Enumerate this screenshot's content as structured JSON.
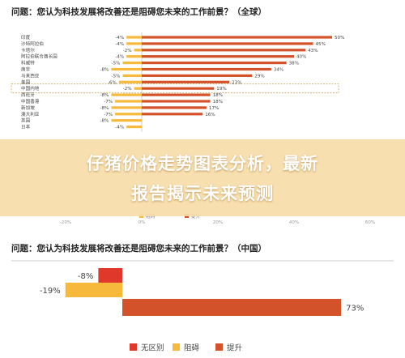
{
  "question1": "问题：您认为科技发展将改善还是阻碍您未来的工作前景？（全球）",
  "question2": "问题：您认为科技发展将改善还是阻碍您未来的工作前景？（中国）",
  "banner": {
    "line1": "仔猪价格走势图表分析，最新",
    "line2": "报告揭示未来预测"
  },
  "colors": {
    "improve": "#d4522a",
    "hinder": "#f6b93b",
    "nodiff": "#e0392b",
    "divider": "#999999",
    "highlight_box": "#c9a860"
  },
  "chart_data": [
    {
      "type": "bar",
      "title": "",
      "categories": [
        "印度",
        "沙特阿拉伯",
        "卡塔尔",
        "阿拉伯联合酋长国",
        "科威特",
        "南非",
        "马来西亚",
        "美国",
        "中国内地",
        "西班牙",
        "中国香港",
        "新加坡",
        "澳大利亚",
        "英国",
        "日本"
      ],
      "series": [
        {
          "name": "阻碍",
          "values": [
            -4,
            -4,
            -2,
            -4,
            -5,
            -8,
            -5,
            -6,
            -2,
            -8,
            -7,
            -8,
            -7,
            -8,
            -4
          ]
        },
        {
          "name": "提升",
          "values": [
            50,
            45,
            43,
            40,
            38,
            34,
            29,
            23,
            19,
            18,
            18,
            17,
            16,
            null,
            null
          ]
        }
      ],
      "value_labels": {
        "negative": [
          "-4%",
          "-4%",
          "-2%",
          "-4%",
          "-5%",
          "-8%",
          "-5%",
          "-6%",
          "-2%",
          "-8%",
          "-7%",
          "-8%",
          "-7%",
          "-8%",
          "-4%"
        ],
        "positive": [
          "50%",
          "45%",
          "43%",
          "40%",
          "38%",
          "34%",
          "29%",
          "23%",
          "19%",
          "18%",
          "18%",
          "17%",
          "16%",
          "",
          ""
        ]
      },
      "highlighted_category": "中国内地",
      "x_tick_labels": [
        "-20%",
        "0%",
        "20%",
        "40%",
        "60%"
      ],
      "legend": [
        "阻碍",
        "提升"
      ],
      "legend_position": "bottom"
    },
    {
      "type": "bar",
      "title": "",
      "categories": [
        "无区别",
        "阻碍",
        "提升"
      ],
      "values": [
        -8,
        -19,
        73
      ],
      "value_labels": [
        "-8%",
        "-19%",
        "73%"
      ],
      "legend": [
        "无区别",
        "阻碍",
        "提升"
      ],
      "legend_position": "bottom"
    }
  ]
}
